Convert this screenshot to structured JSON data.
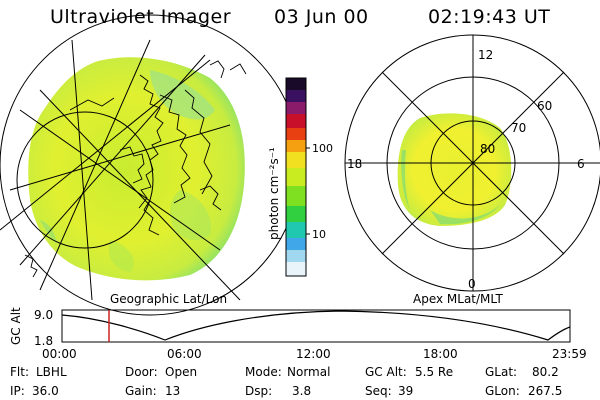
{
  "header": {
    "title": "Ultraviolet Imager",
    "date": "03 Jun 00",
    "time": "02:19:43 UT"
  },
  "geo_panel": {
    "caption": "Geographic Lat/Lon"
  },
  "colorbar": {
    "label": "photon cm⁻²s⁻¹",
    "ticks": [
      "100",
      "10"
    ],
    "colors": [
      "#1a0a2a",
      "#3a1060",
      "#8a1a6a",
      "#c8102a",
      "#e84010",
      "#f4a010",
      "#f0e020",
      "#c8ec20",
      "#7ee020",
      "#30d040",
      "#20c8b0",
      "#40a8e8",
      "#a0d8f0",
      "#e8f4fa"
    ]
  },
  "polar_panel": {
    "caption": "Apex MLat/MLT",
    "mlt_labels": [
      "12",
      "18",
      "6",
      "0"
    ],
    "mlat_labels": [
      "60",
      "70",
      "80"
    ]
  },
  "altitude_plot": {
    "ylabel": "GC Alt",
    "yticks": [
      "9.0",
      "1.8"
    ],
    "xticks": [
      "00:00",
      "06:00",
      "12:00",
      "18:00",
      "23:59"
    ],
    "marker_color": "#cc2020"
  },
  "footer": {
    "row1": [
      {
        "label": "Flt:",
        "value": "LBHL"
      },
      {
        "label": "Door:",
        "value": "Open"
      },
      {
        "label": "Mode:",
        "value": "Normal"
      },
      {
        "label": "GC Alt:",
        "value": "5.5 Re"
      },
      {
        "label": "GLat:",
        "value": "80.2"
      }
    ],
    "row2": [
      {
        "label": "IP:",
        "value": "36.0"
      },
      {
        "label": "Gain:",
        "value": "13"
      },
      {
        "label": "Dsp:",
        "value": "3.8"
      },
      {
        "label": "Seq:",
        "value": "39"
      },
      {
        "label": "GLon:",
        "value": "267.5"
      }
    ]
  }
}
